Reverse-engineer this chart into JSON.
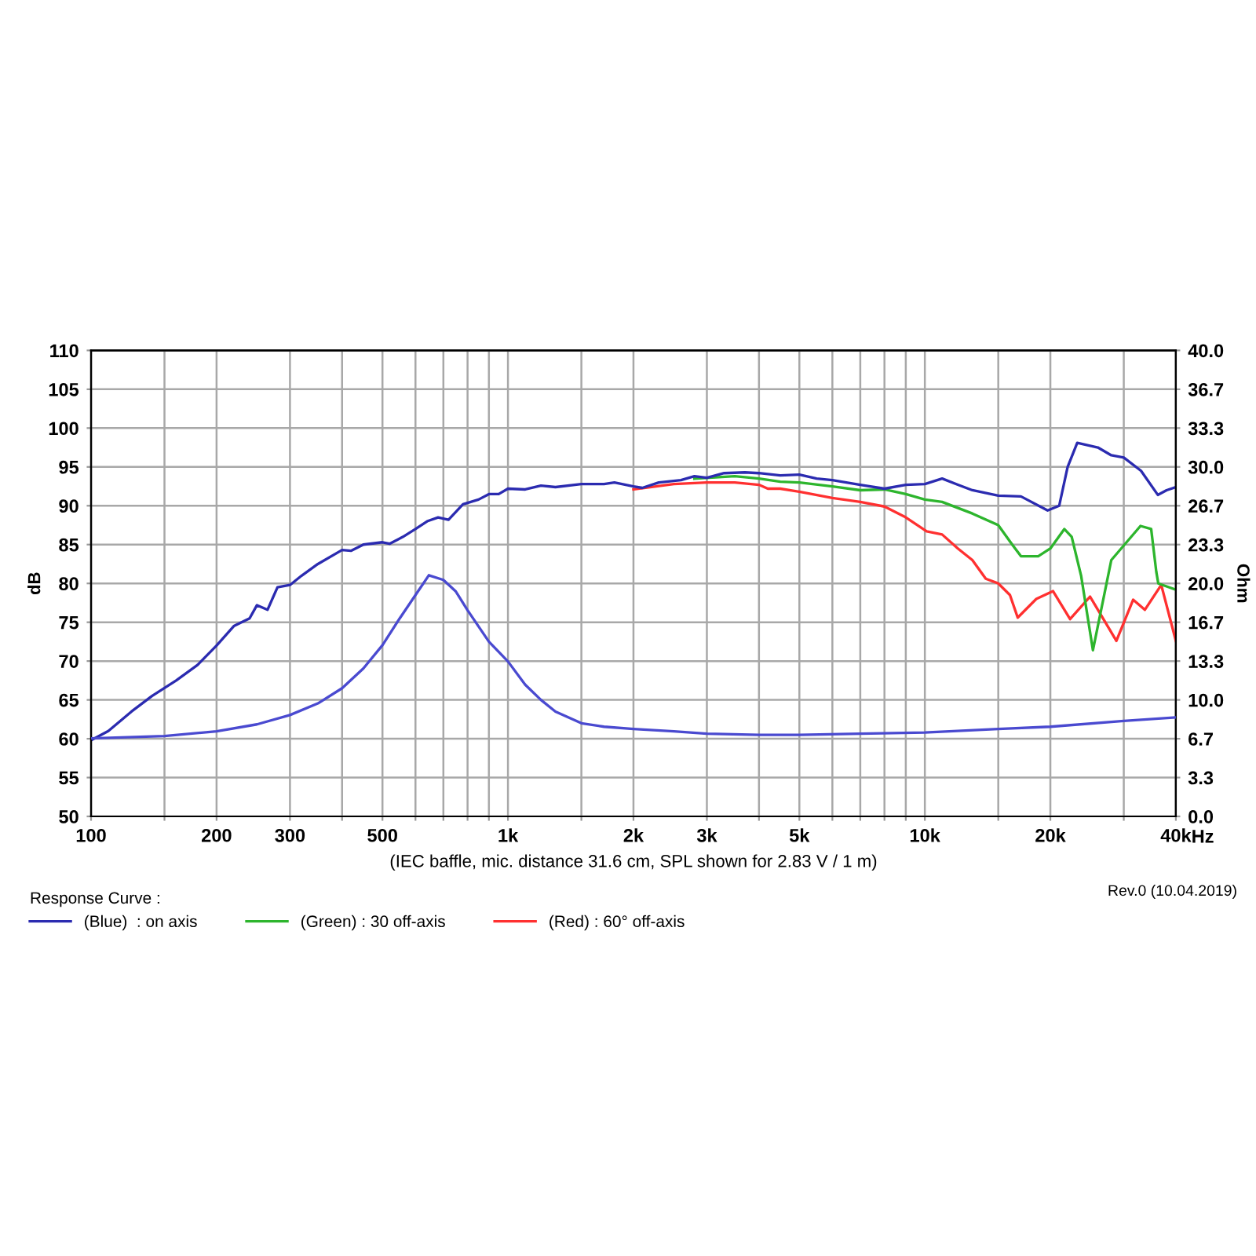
{
  "chart_data": {
    "type": "line",
    "xlabel": "(IEC baffle, mic. distance 31.6 cm, SPL shown for 2.83 V / 1 m)",
    "ylabel": "dB",
    "y2label": "Ohm",
    "legend_title": "Response Curve :",
    "legend": "bottom",
    "grid": true,
    "log": "x",
    "marker": "none",
    "line_style": "solid",
    "annotations": [
      "Rev.0 (10.04.2019)",
      "Hz"
    ],
    "xlim": [
      100,
      40000
    ],
    "ylim": [
      50,
      110
    ],
    "y2lim": [
      0,
      40
    ],
    "xticks": [
      100,
      {
        "value": 150,
        "label": null
      },
      200,
      300,
      {
        "value": 400,
        "label": null
      },
      500,
      {
        "value": 600,
        "label": null
      },
      {
        "value": 700,
        "label": null
      },
      {
        "value": 800,
        "label": null
      },
      {
        "value": 900,
        "label": null
      },
      {
        "value": 1000,
        "label": "1k"
      },
      {
        "value": 1500,
        "label": null
      },
      {
        "value": 2000,
        "label": "2k"
      },
      {
        "value": 3000,
        "label": "3k"
      },
      {
        "value": 4000,
        "label": null
      },
      {
        "value": 5000,
        "label": "5k"
      },
      {
        "value": 6000,
        "label": null
      },
      {
        "value": 7000,
        "label": null
      },
      {
        "value": 8000,
        "label": null
      },
      {
        "value": 9000,
        "label": null
      },
      {
        "value": 10000,
        "label": "10k"
      },
      {
        "value": 15000,
        "label": null
      },
      {
        "value": 20000,
        "label": "20k"
      },
      {
        "value": 30000,
        "label": null
      },
      {
        "value": 40000,
        "label": "40k"
      }
    ],
    "yticks": [
      50,
      55,
      60,
      65,
      70,
      75,
      80,
      85,
      90,
      95,
      100,
      105,
      110
    ],
    "y2ticks": [
      {
        "value": 0,
        "label": "0.0"
      },
      {
        "value": 3.3333,
        "label": "3.3"
      },
      {
        "value": 6.6667,
        "label": "6.7"
      },
      {
        "value": 10,
        "label": "10.0"
      },
      {
        "value": 13.3333,
        "label": "13.3"
      },
      {
        "value": 16.6667,
        "label": "16.7"
      },
      {
        "value": 20,
        "label": "20.0"
      },
      {
        "value": 23.3333,
        "label": "23.3"
      },
      {
        "value": 26.6667,
        "label": "26.7"
      },
      {
        "value": 30,
        "label": "30.0"
      },
      {
        "value": 33.3333,
        "label": "33.3"
      },
      {
        "value": 36.6667,
        "label": "36.7"
      },
      {
        "value": 40,
        "label": "40.0"
      }
    ],
    "series": [
      {
        "name": "(Blue)  : on axis",
        "color": "#2b2bb0",
        "x": [
          100,
          110,
          125,
          140,
          160,
          180,
          200,
          220,
          240,
          250,
          265,
          280,
          300,
          320,
          350,
          400,
          420,
          450,
          500,
          520,
          560,
          600,
          640,
          680,
          720,
          780,
          850,
          900,
          950,
          1000,
          1100,
          1200,
          1300,
          1500,
          1700,
          1800,
          2000,
          2100,
          2300,
          2600,
          2800,
          3000,
          3300,
          3700,
          4000,
          4500,
          5000,
          5500,
          6000,
          7000,
          8000,
          9000,
          10000,
          11000,
          12000,
          13000,
          15000,
          17000,
          19700,
          21000,
          22000,
          23200,
          26000,
          28000,
          30000,
          33000,
          36200,
          38000,
          40000
        ],
        "values": [
          59.8,
          61,
          63.5,
          65.5,
          67.5,
          69.5,
          72,
          74.5,
          75.5,
          77.2,
          76.6,
          79.5,
          79.8,
          81,
          82.5,
          84.3,
          84.2,
          85,
          85.3,
          85.1,
          86,
          87,
          88,
          88.5,
          88.2,
          90.2,
          90.8,
          91.5,
          91.5,
          92.2,
          92.1,
          92.6,
          92.4,
          92.8,
          92.8,
          93,
          92.5,
          92.3,
          93,
          93.3,
          93.8,
          93.6,
          94.2,
          94.3,
          94.2,
          93.9,
          94,
          93.5,
          93.3,
          92.7,
          92.2,
          92.7,
          92.8,
          93.5,
          92.7,
          92,
          91.3,
          91.2,
          89.4,
          90,
          95,
          98.1,
          97.5,
          96.5,
          96.2,
          94.5,
          91.4,
          92,
          92.4
        ]
      },
      {
        "name": "(Green) : 30 off-axis",
        "color": "#2db52d",
        "x": [
          2800,
          3500,
          4000,
          4500,
          5000,
          6000,
          7000,
          8000,
          9000,
          10000,
          11000,
          13000,
          15000,
          16200,
          17000,
          18700,
          20000,
          21600,
          22500,
          23700,
          25300,
          28000,
          32900,
          34900,
          35900,
          36300,
          40000
        ],
        "values": [
          93.5,
          93.8,
          93.5,
          93.1,
          93,
          92.5,
          92,
          92.1,
          91.5,
          90.8,
          90.5,
          89,
          87.5,
          85,
          83.5,
          83.5,
          84.5,
          87,
          86,
          81,
          71.4,
          83,
          87.4,
          87,
          81.5,
          80,
          79.2
        ]
      },
      {
        "name": "(Red) : 60° off-axis",
        "color": "#ff3030",
        "x": [
          2000,
          2500,
          3000,
          3500,
          4000,
          4200,
          4500,
          5000,
          6000,
          7000,
          8000,
          9000,
          10100,
          11000,
          12000,
          13000,
          14000,
          15000,
          16000,
          16700,
          18500,
          20300,
          22300,
          24900,
          28800,
          31600,
          33700,
          36900,
          40000
        ],
        "values": [
          92.1,
          92.8,
          93,
          93,
          92.7,
          92.2,
          92.2,
          91.8,
          91,
          90.5,
          89.9,
          88.5,
          86.7,
          86.3,
          84.5,
          83,
          80.6,
          80,
          78.5,
          75.6,
          78,
          79,
          75.4,
          78.3,
          72.6,
          77.9,
          76.6,
          79.8,
          72.6
        ]
      },
      {
        "axis": "y2",
        "color": "#4a4ad0",
        "x": [
          100,
          150,
          200,
          250,
          300,
          350,
          400,
          450,
          500,
          550,
          600,
          646,
          700,
          750,
          800,
          900,
          1000,
          1100,
          1200,
          1300,
          1500,
          1700,
          2000,
          2500,
          3000,
          4000,
          5000,
          7000,
          10000,
          15000,
          20000,
          30000,
          40000
        ],
        "values": [
          6.7,
          6.9,
          7.3,
          7.9,
          8.7,
          9.7,
          11,
          12.7,
          14.7,
          17,
          19,
          20.7,
          20.3,
          19.3,
          17.7,
          15,
          13.3,
          11.3,
          10,
          9,
          8,
          7.7,
          7.5,
          7.3,
          7.1,
          7,
          7,
          7.1,
          7.2,
          7.5,
          7.7,
          8.2,
          8.5
        ]
      }
    ]
  }
}
